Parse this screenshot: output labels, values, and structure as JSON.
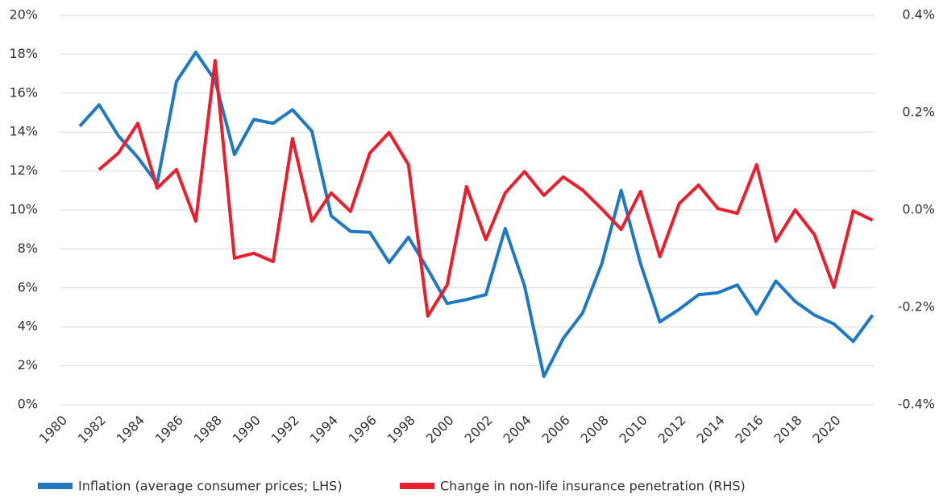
{
  "chart_data": {
    "type": "line",
    "x": [
      1981,
      1982,
      1983,
      1984,
      1985,
      1986,
      1987,
      1988,
      1989,
      1990,
      1991,
      1992,
      1993,
      1994,
      1995,
      1996,
      1997,
      1998,
      1999,
      2000,
      2001,
      2002,
      2003,
      2004,
      2005,
      2006,
      2007,
      2008,
      2009,
      2010,
      2011,
      2012,
      2013,
      2014,
      2015,
      2016,
      2017,
      2018,
      2019,
      2020,
      2021,
      2022
    ],
    "xlim": [
      1980,
      2022.1
    ],
    "xticks": [
      1980,
      1982,
      1984,
      1986,
      1988,
      1990,
      1992,
      1994,
      1996,
      1998,
      2000,
      2002,
      2004,
      2006,
      2008,
      2010,
      2012,
      2014,
      2016,
      2018,
      2020
    ],
    "ylim": [
      0,
      20
    ],
    "yticks": [
      {
        "value": 0,
        "label": "0%"
      },
      {
        "value": 2,
        "label": "2%"
      },
      {
        "value": 4,
        "label": "4%"
      },
      {
        "value": 6,
        "label": "6%"
      },
      {
        "value": 8,
        "label": "8%"
      },
      {
        "value": 10,
        "label": "10%"
      },
      {
        "value": 12,
        "label": "12%"
      },
      {
        "value": 14,
        "label": "14%"
      },
      {
        "value": 16,
        "label": "16%"
      },
      {
        "value": 18,
        "label": "18%"
      },
      {
        "value": 20,
        "label": "20%"
      }
    ],
    "y2lim": [
      -0.4,
      0.4
    ],
    "y2ticks": [
      {
        "value": -0.4,
        "label": "-0.4%"
      },
      {
        "value": -0.2,
        "label": "-0.2%"
      },
      {
        "value": 0,
        "label": "0.0%"
      },
      {
        "value": 0.2,
        "label": "0.2%"
      },
      {
        "value": 0.4,
        "label": "0.4%"
      }
    ],
    "grid": true,
    "legend": "bottom",
    "series": [
      {
        "name": "Inflation (average consumer prices; LHS)",
        "color": "#1f78c1",
        "values": [
          14.3,
          15.4,
          13.8,
          12.7,
          11.35,
          16.6,
          18.1,
          16.65,
          12.85,
          14.65,
          14.45,
          15.15,
          14.05,
          9.7,
          8.9,
          8.85,
          7.3,
          8.6,
          6.95,
          5.2,
          5.4,
          5.65,
          9.05,
          6.1,
          1.45,
          3.4,
          4.7,
          7.25,
          11.0,
          7.25,
          4.25,
          4.9,
          5.65,
          5.75,
          6.15,
          4.65,
          6.35,
          5.3,
          4.6,
          4.15,
          3.25,
          4.6
        ]
      },
      {
        "name": "Change in non-life insurance penetration (RHS)",
        "color": "#e8202e",
        "axis": "y2",
        "values": [
          null,
          0.083,
          0.117,
          0.178,
          0.045,
          0.083,
          -0.023,
          0.307,
          -0.099,
          -0.089,
          -0.106,
          0.147,
          -0.023,
          0.035,
          -0.003,
          0.117,
          0.159,
          0.093,
          -0.218,
          -0.154,
          0.048,
          -0.061,
          0.035,
          0.079,
          0.03,
          0.068,
          0.041,
          0.002,
          -0.04,
          0.038,
          -0.096,
          0.013,
          0.051,
          0.003,
          -0.007,
          0.093,
          -0.064,
          0.0,
          -0.051,
          -0.159,
          -0.002,
          -0.021
        ]
      }
    ]
  }
}
